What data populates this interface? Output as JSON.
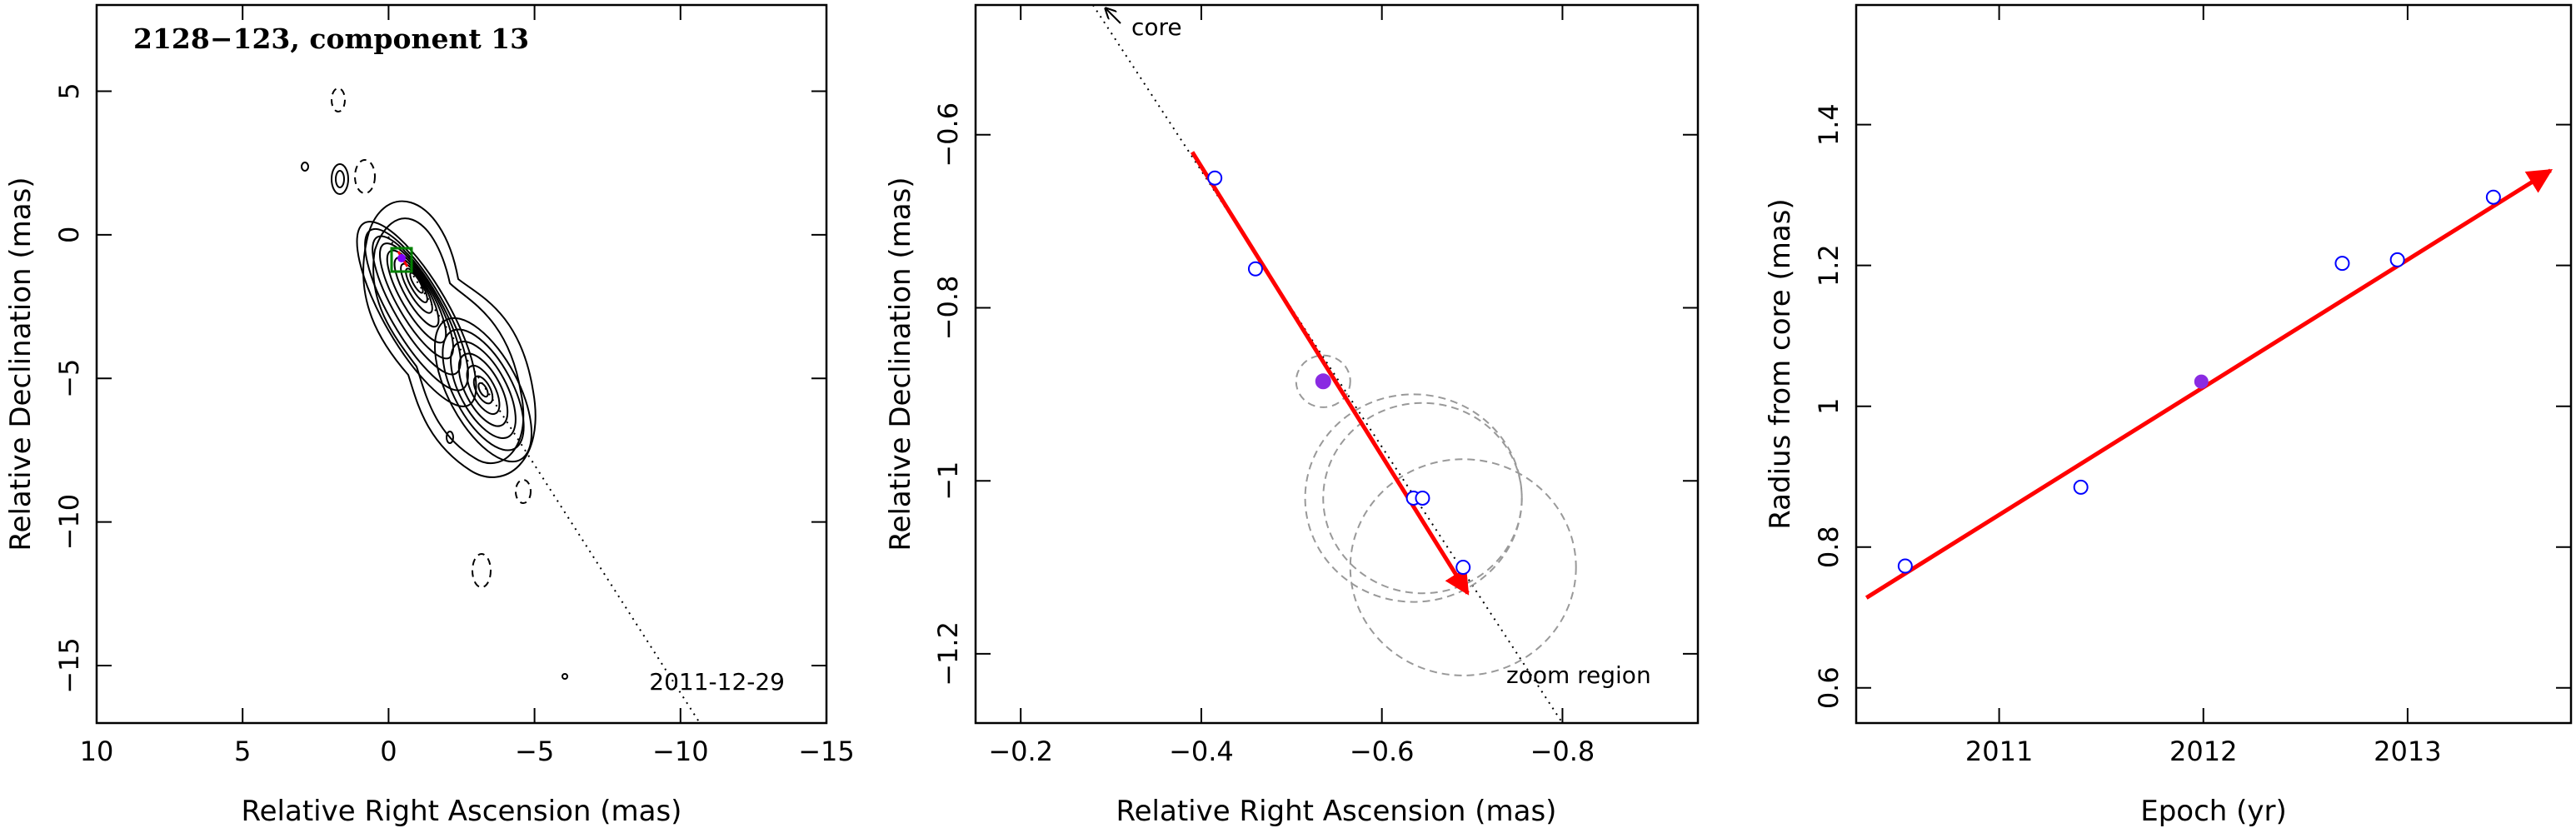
{
  "chart_data": [
    {
      "type": "scatter",
      "panel": "contour-map",
      "title": "2128−123, component 13",
      "date_label": "2011-12-29",
      "xlabel": "Relative Right Ascension (mas)",
      "ylabel": "Relative Declination (mas)",
      "xlim": [
        10,
        -15
      ],
      "ylim": [
        -17,
        8
      ],
      "xticks": [
        10,
        5,
        0,
        -5,
        -10,
        -15
      ],
      "xtick_labels": [
        "10",
        "5",
        "0",
        "−5",
        "−10",
        "−15"
      ],
      "yticks": [
        5,
        0,
        -5,
        -10,
        -15
      ],
      "ytick_labels": [
        "5",
        "0",
        "−5",
        "−10",
        "−15"
      ],
      "grid": false,
      "series": [
        {
          "values": [
            {
              "x": -0.55,
              "y": -0.9
            }
          ]
        }
      ],
      "core_direction_line": [
        [
          0,
          0
        ],
        [
          -11,
          -17
        ]
      ],
      "zoom_box": {
        "x": [
          -0.25,
          -0.95
        ],
        "y": [
          -0.5,
          -1.3
        ]
      },
      "colors": {
        "contour": "#000000",
        "box": "#008000",
        "arrow": "#ff0000",
        "point": "#8000ff"
      }
    },
    {
      "type": "scatter",
      "panel": "zoom",
      "xlabel": "Relative Right Ascension (mas)",
      "ylabel": "Relative Declination (mas)",
      "xlim": [
        -0.15,
        -0.95
      ],
      "ylim": [
        -1.28,
        -0.45
      ],
      "xticks": [
        -0.2,
        -0.4,
        -0.6,
        -0.8
      ],
      "xtick_labels": [
        "−0.2",
        "−0.4",
        "−0.6",
        "−0.8"
      ],
      "yticks": [
        -0.6,
        -0.8,
        -1.0,
        -1.2
      ],
      "ytick_labels": [
        "−0.6",
        "−0.8",
        "−1",
        "−1.2"
      ],
      "grid": false,
      "annotations": [
        "core",
        "zoom region"
      ],
      "series": [
        {
          "values": [
            {
              "x": -0.415,
              "y": -0.65
            },
            {
              "x": -0.46,
              "y": -0.755
            },
            {
              "x": -0.635,
              "y": -1.02
            },
            {
              "x": -0.645,
              "y": -1.02
            },
            {
              "x": -0.69,
              "y": -1.1
            }
          ]
        },
        {
          "values": [
            {
              "x": -0.535,
              "y": -0.885
            }
          ]
        }
      ],
      "ellipses": [
        {
          "x": -0.535,
          "y": -0.885,
          "r": 0.03
        },
        {
          "x": -0.635,
          "y": -1.02,
          "r": 0.12
        },
        {
          "x": -0.645,
          "y": -1.02,
          "r": 0.11
        },
        {
          "x": -0.69,
          "y": -1.1,
          "r": 0.125
        }
      ],
      "velocity_arrow": {
        "from": [
          -0.39,
          -0.62
        ],
        "to": [
          -0.695,
          -1.13
        ]
      },
      "core_line": {
        "from": [
          -0.28,
          -0.45
        ],
        "to": [
          -0.8,
          -1.28
        ]
      },
      "colors": {
        "open_point": "#0000ff",
        "filled_point": "#8a2be2",
        "arrow": "#ff0000",
        "ellipse": "#999999"
      }
    },
    {
      "type": "scatter",
      "panel": "radius-vs-epoch",
      "xlabel": "Epoch (yr)",
      "ylabel": "Radius from core (mas)",
      "xlim": [
        2010.3,
        2013.8
      ],
      "ylim": [
        0.55,
        1.57
      ],
      "xticks": [
        2011,
        2012,
        2013
      ],
      "xtick_labels": [
        "2011",
        "2012",
        "2013"
      ],
      "yticks": [
        0.6,
        0.8,
        1.0,
        1.2,
        1.4
      ],
      "ytick_labels": [
        "0.6",
        "0.8",
        "1",
        "1.2",
        "1.4"
      ],
      "grid": false,
      "series": [
        {
          "values": [
            {
              "x": 2010.54,
              "y": 0.773
            },
            {
              "x": 2011.4,
              "y": 0.885
            },
            {
              "x": 2012.68,
              "y": 1.203
            },
            {
              "x": 2012.95,
              "y": 1.208
            },
            {
              "x": 2013.42,
              "y": 1.297
            }
          ]
        },
        {
          "values": [
            {
              "x": 2011.99,
              "y": 1.035
            }
          ]
        }
      ],
      "fit_arrow": {
        "from": [
          2010.35,
          0.728
        ],
        "to": [
          2013.7,
          1.335
        ]
      },
      "colors": {
        "open_point": "#0000ff",
        "filled_point": "#8a2be2",
        "arrow": "#ff0000"
      }
    }
  ]
}
